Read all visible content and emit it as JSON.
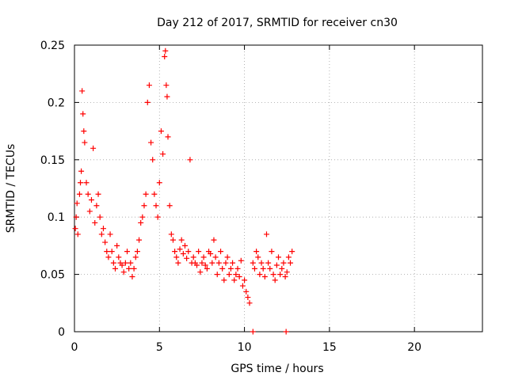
{
  "chart_data": {
    "type": "scatter",
    "title": "Day 212 of 2017, SRMTID for receiver cn30",
    "xlabel": "GPS time / hours",
    "ylabel": "SRMTID / TECUs",
    "xlim": [
      0,
      24
    ],
    "ylim": [
      0,
      0.25
    ],
    "x_ticks": [
      0,
      5,
      10,
      15,
      20
    ],
    "x_tick_labels": [
      "0",
      "5",
      "10",
      "15",
      "20"
    ],
    "y_ticks": [
      0,
      0.05,
      0.1,
      0.15,
      0.2,
      0.25
    ],
    "y_tick_labels": [
      "0",
      "0.05",
      "0.1",
      "0.15",
      "0.2",
      "0.25"
    ],
    "grid": true,
    "marker": "plus",
    "series": [
      {
        "name": "SRMTID",
        "color": "#ff0000",
        "x": [
          0.05,
          0.1,
          0.15,
          0.2,
          0.3,
          0.35,
          0.4,
          0.45,
          0.5,
          0.55,
          0.6,
          0.7,
          0.8,
          0.9,
          1.0,
          1.1,
          1.2,
          1.3,
          1.4,
          1.5,
          1.6,
          1.7,
          1.8,
          1.9,
          2.0,
          2.1,
          2.2,
          2.3,
          2.4,
          2.5,
          2.6,
          2.7,
          2.8,
          2.9,
          3.0,
          3.1,
          3.2,
          3.3,
          3.4,
          3.5,
          3.6,
          3.7,
          3.8,
          3.9,
          4.0,
          4.1,
          4.2,
          4.3,
          4.4,
          4.5,
          4.6,
          4.7,
          4.8,
          4.9,
          5.0,
          5.1,
          5.2,
          5.3,
          5.35,
          5.4,
          5.45,
          5.5,
          5.6,
          5.7,
          5.8,
          5.9,
          6.0,
          6.1,
          6.2,
          6.3,
          6.4,
          6.5,
          6.6,
          6.7,
          6.8,
          6.9,
          7.0,
          7.1,
          7.2,
          7.3,
          7.4,
          7.5,
          7.6,
          7.7,
          7.8,
          7.9,
          8.0,
          8.1,
          8.2,
          8.3,
          8.4,
          8.5,
          8.6,
          8.7,
          8.8,
          8.9,
          9.0,
          9.1,
          9.2,
          9.3,
          9.4,
          9.5,
          9.6,
          9.7,
          9.8,
          9.9,
          10.0,
          10.1,
          10.2,
          10.3,
          10.5,
          10.6,
          10.7,
          10.8,
          10.9,
          11.0,
          11.1,
          11.2,
          11.3,
          11.4,
          11.5,
          11.6,
          11.7,
          11.8,
          11.9,
          12.0,
          12.1,
          12.2,
          12.3,
          12.4,
          12.5,
          12.6,
          12.7,
          12.8,
          10.5,
          12.45
        ],
        "y": [
          0.09,
          0.1,
          0.112,
          0.085,
          0.12,
          0.13,
          0.14,
          0.21,
          0.19,
          0.175,
          0.165,
          0.13,
          0.12,
          0.105,
          0.115,
          0.16,
          0.095,
          0.11,
          0.12,
          0.1,
          0.085,
          0.09,
          0.078,
          0.07,
          0.065,
          0.085,
          0.07,
          0.06,
          0.055,
          0.075,
          0.065,
          0.06,
          0.058,
          0.052,
          0.06,
          0.07,
          0.055,
          0.06,
          0.048,
          0.055,
          0.065,
          0.07,
          0.08,
          0.095,
          0.1,
          0.11,
          0.12,
          0.2,
          0.215,
          0.165,
          0.15,
          0.12,
          0.11,
          0.1,
          0.13,
          0.175,
          0.155,
          0.24,
          0.245,
          0.215,
          0.205,
          0.17,
          0.11,
          0.085,
          0.08,
          0.07,
          0.065,
          0.06,
          0.072,
          0.08,
          0.068,
          0.075,
          0.064,
          0.07,
          0.15,
          0.06,
          0.065,
          0.06,
          0.058,
          0.07,
          0.052,
          0.06,
          0.065,
          0.058,
          0.055,
          0.07,
          0.068,
          0.06,
          0.08,
          0.065,
          0.05,
          0.06,
          0.07,
          0.055,
          0.045,
          0.06,
          0.065,
          0.05,
          0.055,
          0.06,
          0.045,
          0.05,
          0.055,
          0.048,
          0.062,
          0.04,
          0.045,
          0.035,
          0.03,
          0.025,
          0.06,
          0.055,
          0.07,
          0.065,
          0.05,
          0.06,
          0.055,
          0.048,
          0.085,
          0.06,
          0.055,
          0.07,
          0.05,
          0.045,
          0.058,
          0.065,
          0.05,
          0.055,
          0.06,
          0.048,
          0.052,
          0.065,
          0.06,
          0.07,
          0.0,
          0.0
        ]
      }
    ]
  }
}
